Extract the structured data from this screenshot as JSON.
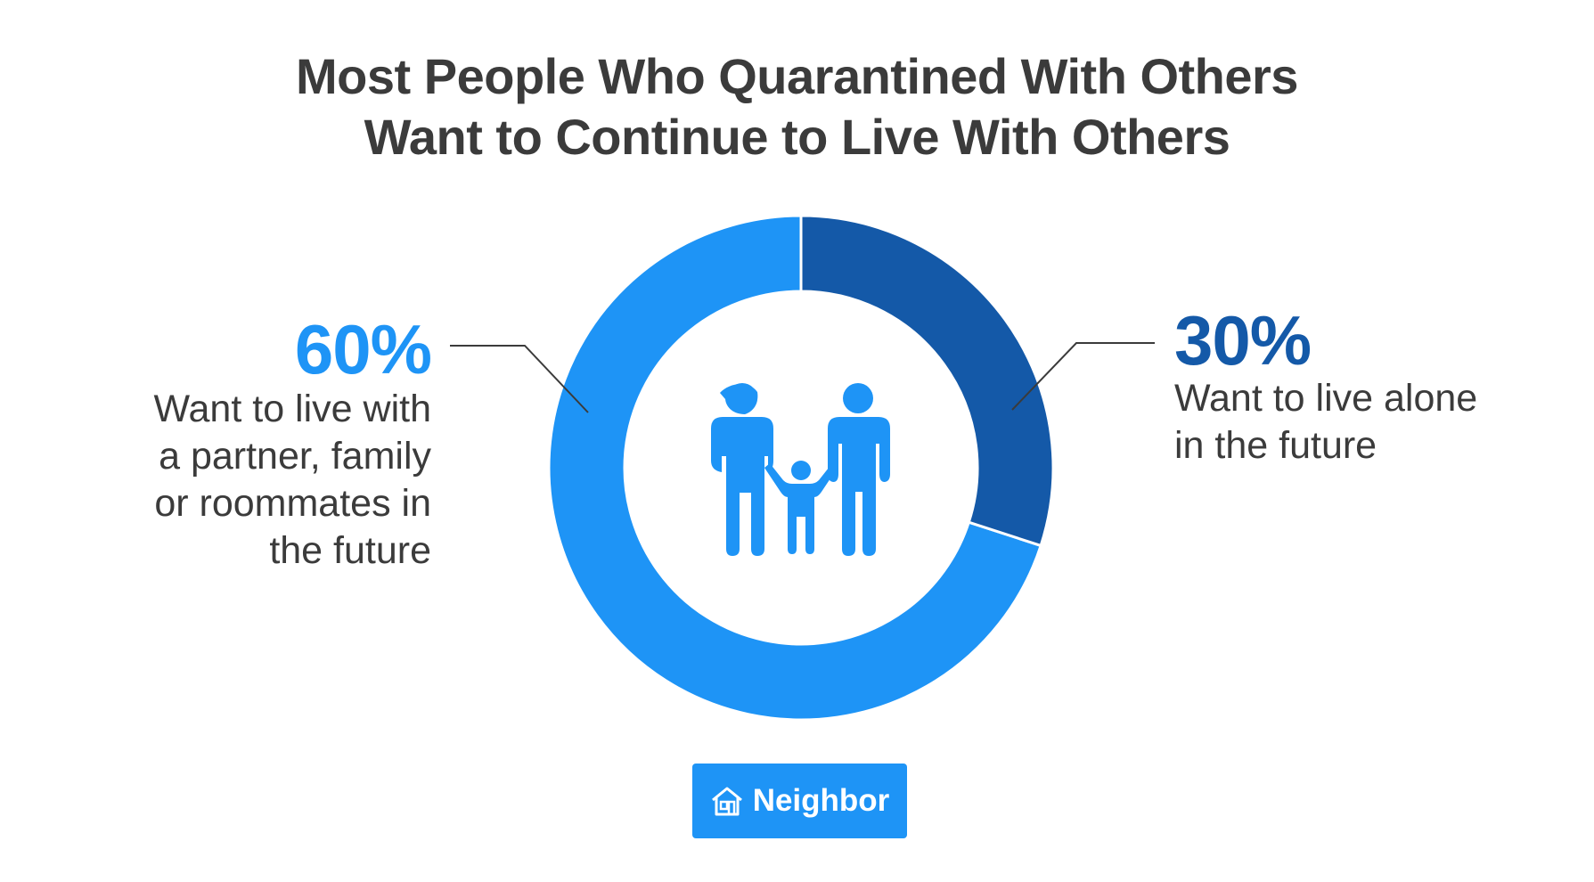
{
  "title": {
    "line1": "Most People Who Quarantined With Others",
    "line2": "Want to Continue to Live With Others"
  },
  "colors": {
    "light_blue": "#1e94f6",
    "dark_blue": "#1459a8",
    "text": "#3b3b3b",
    "leader_line": "#3b3b3b"
  },
  "chart_data": {
    "type": "pie",
    "donut": true,
    "title": "Most People Who Quarantined With Others Want to Continue to Live With Others",
    "slices": [
      {
        "label": "Want to live with a partner, family or roommates in the future",
        "value": 60,
        "display": "60%",
        "color": "#1e94f6"
      },
      {
        "label": "Want to live alone in the future",
        "value": 30,
        "display": "30%",
        "color": "#1459a8"
      }
    ]
  },
  "labels": {
    "left": {
      "percent": "60%",
      "lines": [
        "Want to live with",
        "a partner, family",
        "or roommates in",
        "the future"
      ]
    },
    "right": {
      "percent": "30%",
      "lines": [
        "Want to live alone",
        "in the future"
      ]
    }
  },
  "center_icon": "family-icon",
  "logo": {
    "text": "Neighbor",
    "icon": "house-icon",
    "color": "#1e94f6"
  }
}
